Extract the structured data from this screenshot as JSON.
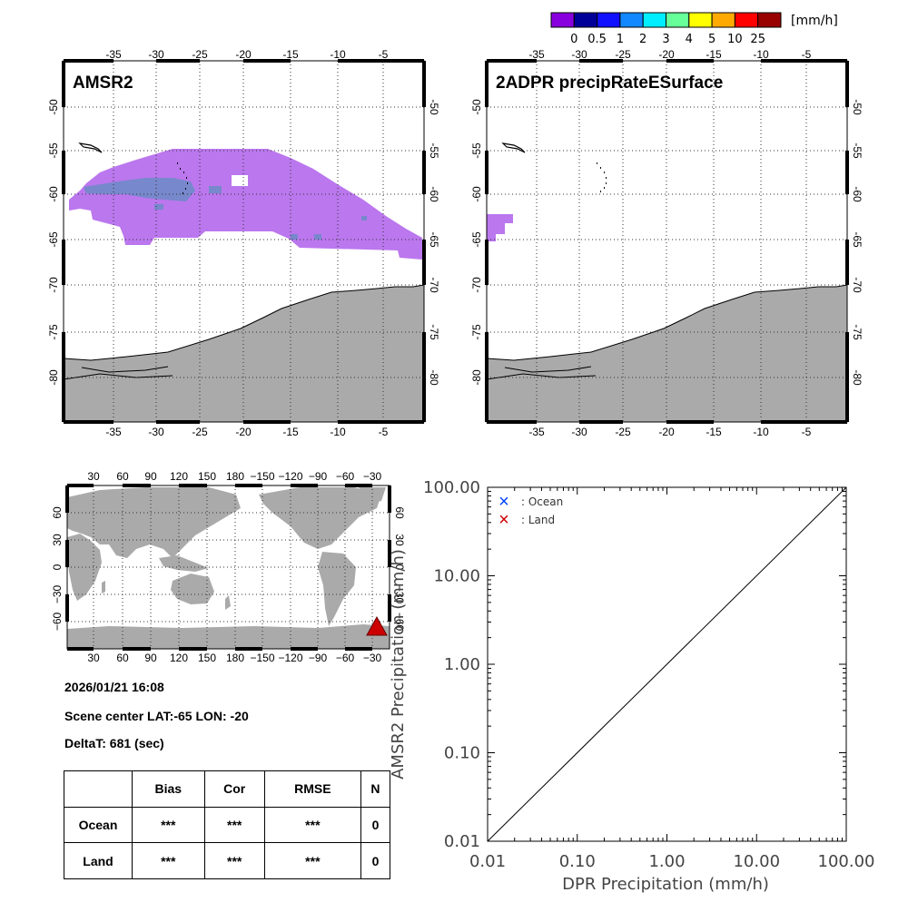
{
  "colorbar": {
    "unit": "[mm/h]",
    "labels": [
      "0",
      "0.5",
      "1",
      "2",
      "3",
      "4",
      "5",
      "10",
      "25"
    ],
    "colors": [
      "#8800dd",
      "#000099",
      "#1111ff",
      "#1188ff",
      "#00eeff",
      "#66ff99",
      "#ffff00",
      "#ffaa00",
      "#ff0000",
      "#990000"
    ]
  },
  "maps": [
    {
      "title": "AMSR2",
      "lon_ticks": [
        "-35",
        "-30",
        "-25",
        "-20",
        "-15",
        "-10",
        "-5"
      ],
      "lat_ticks": [
        "-50",
        "-55",
        "-60",
        "-65",
        "-70",
        "-75",
        "-80"
      ]
    },
    {
      "title": "2ADPR precipRateESurface",
      "lon_ticks": [
        "-35",
        "-30",
        "-25",
        "-20",
        "-15",
        "-10",
        "-5"
      ],
      "lat_ticks": [
        "-50",
        "-55",
        "-60",
        "-65",
        "-70",
        "-75",
        "-80"
      ]
    }
  ],
  "world_map": {
    "lon_ticks": [
      "30",
      "60",
      "90",
      "120",
      "150",
      "180",
      "−150",
      "−120",
      "−90",
      "−60",
      "−30"
    ],
    "lat_ticks": [
      "60",
      "30",
      "0",
      "−30",
      "−60"
    ],
    "marker_color": "#cc0000"
  },
  "info": {
    "datetime": "2026/01/21 16:08",
    "scene_center": "Scene center LAT:-65   LON: -20",
    "delta_t": "DeltaT:  681 (sec)"
  },
  "stats_table": {
    "headers": [
      "",
      "Bias",
      "Cor",
      "RMSE",
      "N"
    ],
    "rows": [
      {
        "label": "Ocean",
        "bias": "***",
        "cor": "***",
        "rmse": "***",
        "n": "0"
      },
      {
        "label": "Land",
        "bias": "***",
        "cor": "***",
        "rmse": "***",
        "n": "0"
      }
    ]
  },
  "chart_data": {
    "type": "scatter",
    "title": "",
    "xlabel": "DPR Precipitation (mm/h)",
    "ylabel": "AMSR2 Precipitation (mm/h)",
    "xscale": "log",
    "yscale": "log",
    "xlim": [
      0.01,
      100
    ],
    "ylim": [
      0.01,
      100
    ],
    "x_ticks": [
      "0.01",
      "0.10",
      "1.00",
      "10.00",
      "100.00"
    ],
    "y_ticks": [
      "0.01",
      "0.10",
      "1.00",
      "10.00",
      "100.00"
    ],
    "legend": [
      {
        "symbol": "×",
        "label": ": Ocean",
        "color": "#0044ff"
      },
      {
        "symbol": "×",
        "label": ": Land",
        "color": "#cc0000"
      }
    ],
    "legend_position": "top-left",
    "reference_line": "1:1",
    "series": [
      {
        "name": "Ocean",
        "points": []
      },
      {
        "name": "Land",
        "points": []
      }
    ]
  }
}
